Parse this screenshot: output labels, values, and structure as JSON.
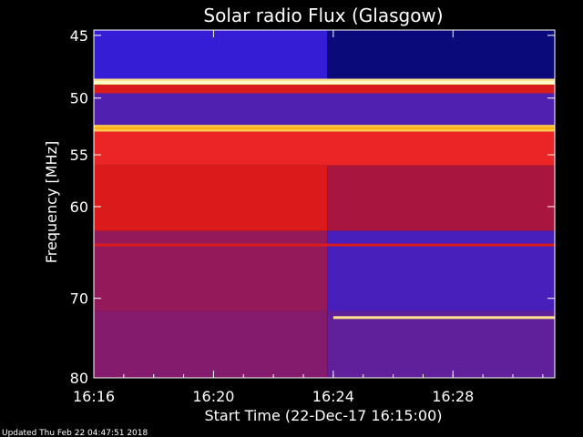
{
  "chart_data": {
    "type": "heatmap",
    "title": "Solar radio Flux (Glasgow)",
    "xlabel": "Start Time (22-Dec-17 16:15:00)",
    "ylabel": "Frequency [MHz]",
    "x_range_minutes": [
      16.0,
      31.4
    ],
    "y_range_mhz": [
      44.6,
      80.0
    ],
    "y_scale": "log",
    "x_ticks": [
      {
        "label": "16:16",
        "minute": 16
      },
      {
        "label": "16:20",
        "minute": 20
      },
      {
        "label": "16:24",
        "minute": 24
      },
      {
        "label": "16:28",
        "minute": 28
      }
    ],
    "y_ticks": [
      {
        "label": "45",
        "mhz": 45
      },
      {
        "label": "50",
        "mhz": 50
      },
      {
        "label": "55",
        "mhz": 55
      },
      {
        "label": "60",
        "mhz": 60
      },
      {
        "label": "70",
        "mhz": 70
      },
      {
        "label": "80",
        "mhz": 80
      }
    ],
    "colormap": [
      "#000000",
      "#1515ff",
      "#5522aa",
      "#cc1111",
      "#ff3333",
      "#ffaa00",
      "#ffffcc"
    ],
    "intensity_regions": [
      {
        "f_from": 44.6,
        "f_to": 48.4,
        "t_from": 16.0,
        "t_to": 23.8,
        "level": 0.25
      },
      {
        "f_from": 44.6,
        "f_to": 48.4,
        "t_from": 23.8,
        "t_to": 31.4,
        "level": 0.08
      },
      {
        "f_from": 48.4,
        "f_to": 48.9,
        "t_from": 16.0,
        "t_to": 31.4,
        "level": 0.95
      },
      {
        "f_from": 48.9,
        "f_to": 49.6,
        "t_from": 16.0,
        "t_to": 31.4,
        "level": 0.55
      },
      {
        "f_from": 49.6,
        "f_to": 52.3,
        "t_from": 16.0,
        "t_to": 31.4,
        "level": 0.32
      },
      {
        "f_from": 52.3,
        "f_to": 52.9,
        "t_from": 16.0,
        "t_to": 31.4,
        "level": 0.9
      },
      {
        "f_from": 52.9,
        "f_to": 56.0,
        "t_from": 16.0,
        "t_to": 31.4,
        "level": 0.6
      },
      {
        "f_from": 56.0,
        "f_to": 62.5,
        "t_from": 16.0,
        "t_to": 23.8,
        "level": 0.55
      },
      {
        "f_from": 56.0,
        "f_to": 62.5,
        "t_from": 23.8,
        "t_to": 31.4,
        "level": 0.45
      },
      {
        "f_from": 62.5,
        "f_to": 71.5,
        "t_from": 16.0,
        "t_to": 23.8,
        "level": 0.42
      },
      {
        "f_from": 62.5,
        "f_to": 71.5,
        "t_from": 23.8,
        "t_to": 31.4,
        "level": 0.3
      },
      {
        "f_from": 71.5,
        "f_to": 80.0,
        "t_from": 16.0,
        "t_to": 23.8,
        "level": 0.4
      },
      {
        "f_from": 71.5,
        "f_to": 80.0,
        "t_from": 23.8,
        "t_to": 31.4,
        "level": 0.35
      }
    ],
    "emission_lines": [
      {
        "f": 48.7,
        "t_from": 16.0,
        "t_to": 31.4,
        "level": 1.0
      },
      {
        "f": 52.6,
        "t_from": 16.0,
        "t_to": 31.4,
        "level": 0.85
      },
      {
        "f": 64.0,
        "t_from": 16.0,
        "t_to": 31.4,
        "level": 0.55
      },
      {
        "f": 72.3,
        "t_from": 24.0,
        "t_to": 31.4,
        "level": 0.95
      }
    ]
  },
  "footer": {
    "updated": "Updated Thu Feb 22 04:47:51 2018"
  }
}
